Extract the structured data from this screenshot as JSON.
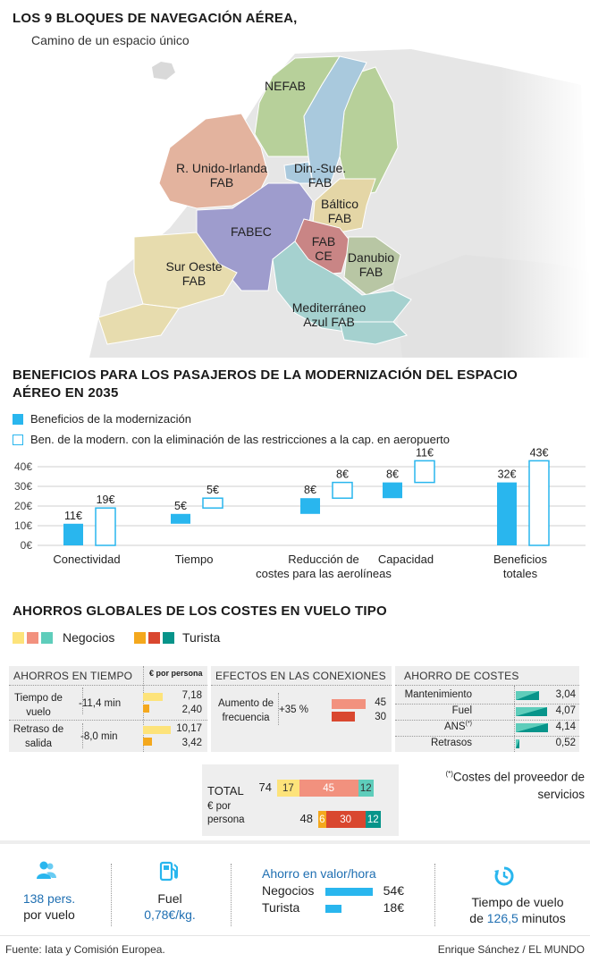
{
  "header": {
    "title": "LOS 9 BLOQUES DE NAVEGACIÓN AÉREA,",
    "subtitle": "Camino de un espacio único"
  },
  "map": {
    "blocks": [
      {
        "label": "NEFAB",
        "color": "#b7d09a"
      },
      {
        "label": "R. Unido-Irlanda\nFAB",
        "color": "#e3b39e"
      },
      {
        "label": "Din.-Sue.\nFAB",
        "color": "#a9c9dd"
      },
      {
        "label": "Báltico\nFAB",
        "color": "#e4d6a6"
      },
      {
        "label": "FABEC",
        "color": "#9e9ccd"
      },
      {
        "label": "FAB\nCE",
        "color": "#c98585"
      },
      {
        "label": "Danubio\nFAB",
        "color": "#b8c6a4"
      },
      {
        "label": "Sur Oeste\nFAB",
        "color": "#e7dcae"
      },
      {
        "label": "Mediterráneo\nAzul FAB",
        "color": "#a5d1cf"
      }
    ]
  },
  "benefits": {
    "title_line1": "BENEFICIOS PARA LOS PASAJEROS DE LA MODERNIZACIÓN DEL ESPACIO",
    "title_line2": "AÉREO EN 2035",
    "legend": [
      {
        "label": "Beneficios de la modernización",
        "color": "#29b6ee"
      },
      {
        "label": "Ben. de la modern. con la eliminación de las restricciones a la cap. en aeropuerto",
        "color": "#29b6ee"
      }
    ]
  },
  "chart_data": {
    "type": "bar",
    "title": "BENEFICIOS PARA LOS PASAJEROS DE LA MODERNIZACIÓN DEL ESPACIO AÉREO EN 2035",
    "categories": [
      "Conectividad",
      "Tiempo",
      "Reducción de costes para las aerolíneas",
      "Capacidad",
      "Beneficios totales"
    ],
    "category_lines": [
      [
        "Conectividad"
      ],
      [
        "Tiempo"
      ],
      [
        "Reducción de",
        "costes para las aerolíneas"
      ],
      [
        "Capacidad"
      ],
      [
        "Beneficios",
        "totales"
      ]
    ],
    "series": [
      {
        "name": "Beneficios de la modernización",
        "start": [
          0,
          11,
          16,
          24,
          0
        ],
        "values": [
          11,
          5,
          8,
          8,
          32
        ],
        "labels": [
          "11€",
          "5€",
          "8€",
          "8€",
          "32€"
        ]
      },
      {
        "name": "Ben. de la modern. con la eliminación de las restricciones a la cap. en aeropuerto",
        "start": [
          0,
          19,
          24,
          32,
          0
        ],
        "values": [
          19,
          5,
          8,
          11,
          43
        ],
        "labels": [
          "19€",
          "5€",
          "8€",
          "11€",
          "43€"
        ]
      }
    ],
    "yticks": [
      "40€",
      "30€",
      "20€",
      "10€",
      "0€"
    ],
    "ylim": [
      0,
      40
    ],
    "grid": true
  },
  "savings": {
    "title": "AHORROS GLOBALES DE LOS COSTES EN VUELO TIPO",
    "legend": [
      {
        "label": "Negocios",
        "colors": [
          "#fde37a",
          "#f2917e",
          "#5ecdbb"
        ]
      },
      {
        "label": "Turista",
        "colors": [
          "#f4a81d",
          "#d9472f",
          "#07948a"
        ]
      }
    ],
    "time": {
      "title": "AHORROS EN TIEMPO",
      "euro_header": "€ por persona",
      "rows": [
        {
          "label": "Tiempo de vuelo",
          "delta": "-11,4 min",
          "values": [
            "7,18",
            "2,40"
          ],
          "amounts": [
            7.18,
            2.4
          ]
        },
        {
          "label": "Retraso de salida",
          "delta": "-8,0 min",
          "values": [
            "10,17",
            "3,42"
          ],
          "amounts": [
            10.17,
            3.42
          ]
        }
      ]
    },
    "connections": {
      "title": "EFECTOS EN LAS CONEXIONES",
      "label": "Aumento de frecuencia",
      "delta": "+35 %",
      "values": [
        "45",
        "30"
      ],
      "amounts": [
        45,
        30
      ]
    },
    "costs": {
      "title": "AHORRO DE COSTES",
      "rows": [
        {
          "label": "Mantenimiento",
          "value": "3,04",
          "amount": 3.04
        },
        {
          "label": "Fuel",
          "value": "4,07",
          "amount": 4.07
        },
        {
          "label": "ANS",
          "sup": "(*)",
          "value": "4,14",
          "amount": 4.14
        },
        {
          "label": "Retrasos",
          "value": "0,52",
          "amount": 0.52
        }
      ]
    },
    "total": {
      "label": "TOTAL",
      "sublabel": "€ por persona",
      "negocios_total": "74",
      "turista_total": "48",
      "negocios_parts": [
        {
          "value": "17",
          "amount": 17
        },
        {
          "value": "45",
          "amount": 45
        },
        {
          "value": "12",
          "amount": 12
        }
      ],
      "turista_parts": [
        {
          "value": "6",
          "amount": 6
        },
        {
          "value": "30",
          "amount": 30
        },
        {
          "value": "12",
          "amount": 12
        }
      ]
    },
    "footnote_sup": "(*)",
    "footnote": "Costes del proveedor de servicios"
  },
  "footer_stats": {
    "passengers": {
      "value": "138 pers.",
      "label": "por vuelo",
      "icon": "people-icon"
    },
    "fuel": {
      "label": "Fuel",
      "value": "0,78€/kg.",
      "icon": "fuel-pump-icon"
    },
    "hour_value": {
      "title": "Ahorro en valor/hora",
      "rows": [
        {
          "label": "Negocios",
          "value": "54€",
          "amount": 54
        },
        {
          "label": "Turista",
          "value": "18€",
          "amount": 18
        }
      ]
    },
    "flight_time": {
      "label": "Tiempo de vuelo",
      "value_prefix": "de ",
      "value": "126,5",
      "value_suffix": " minutos",
      "icon": "clock-rewind-icon"
    }
  },
  "credits": {
    "source": "Fuente: Iata y Comisión Europea.",
    "author": "Enrique Sánchez / EL MUNDO"
  },
  "colors": {
    "accent": "#29b6ee",
    "panel_bg": "#eeeeee",
    "teal": "#07948a",
    "map_land": "#e8e8e8",
    "map_sea": "#ffffff"
  }
}
